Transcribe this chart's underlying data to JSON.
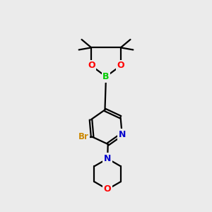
{
  "background_color": "#ebebeb",
  "atom_colors": {
    "O": "#ff0000",
    "N": "#0000cc",
    "B": "#00cc00",
    "Br": "#cc8800",
    "C": "#000000"
  },
  "figsize": [
    3.0,
    3.0
  ],
  "dpi": 100
}
